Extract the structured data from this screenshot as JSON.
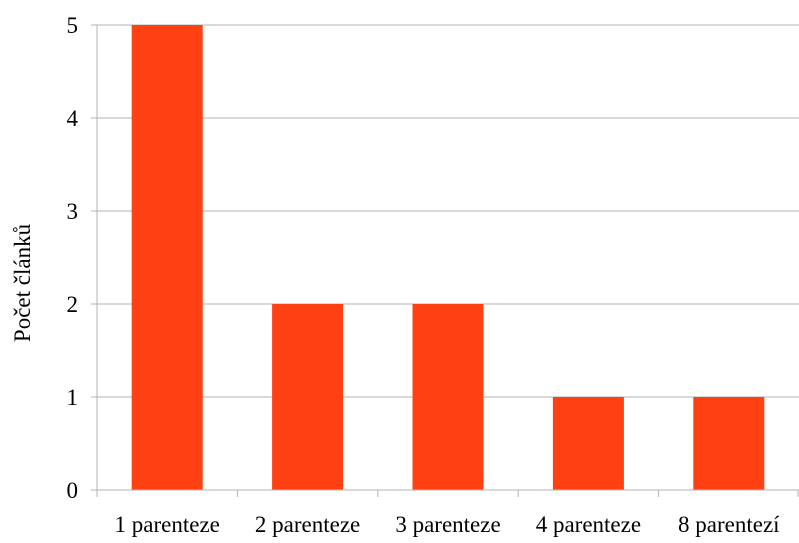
{
  "chart_data": {
    "type": "bar",
    "categories": [
      "1 parenteze",
      "2 parenteze",
      "3 parenteze",
      "4 parenteze",
      "8 parentezí"
    ],
    "values": [
      5,
      2,
      2,
      1,
      1
    ],
    "ylabel": "Počet článků",
    "xlabel": "",
    "ylim": [
      0,
      5
    ],
    "yticks": [
      0,
      1,
      2,
      3,
      4,
      5
    ],
    "grid": true,
    "legend": "none",
    "bar_color": "#ff4013",
    "grid_color": "#b3b3b3"
  }
}
